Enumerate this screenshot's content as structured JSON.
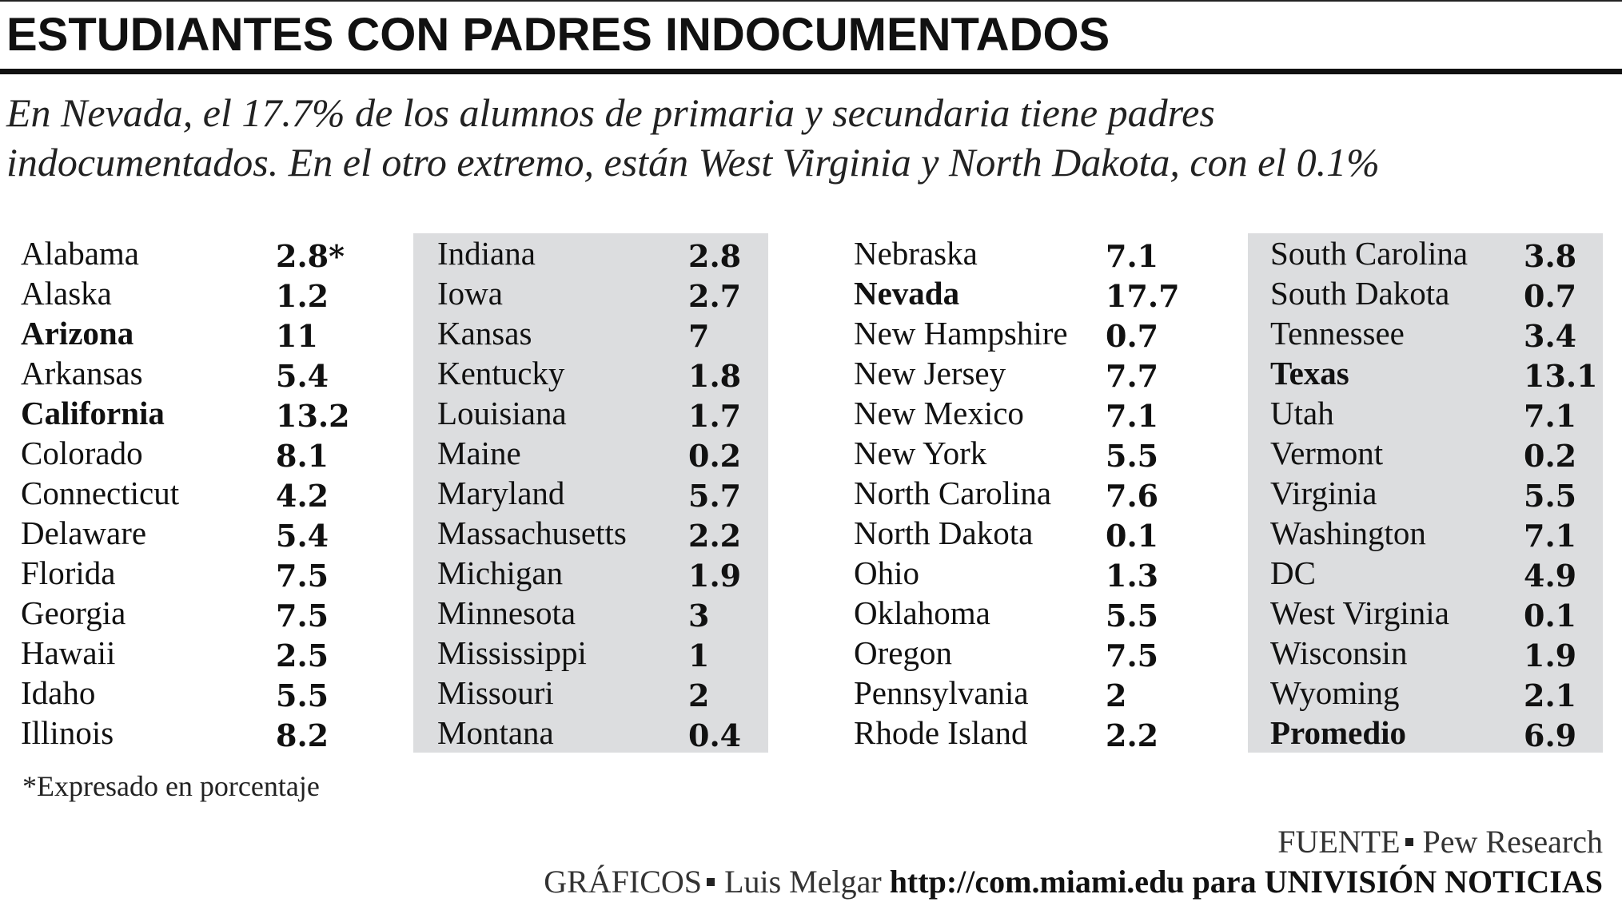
{
  "title": "ESTUDIANTES CON PADRES INDOCUMENTADOS",
  "subtitle": {
    "line1": "En Nevada, el 17.7% de los alumnos de primaria y secundaria tiene padres",
    "line2": "indocumentados. En el otro extremo, están West Virginia y North Dakota, con el 0.1%"
  },
  "columns": [
    {
      "shaded": false,
      "rows": [
        {
          "name": "Alabama",
          "value": "2.8*",
          "bold": false
        },
        {
          "name": "Alaska",
          "value": "1.2",
          "bold": false
        },
        {
          "name": "Arizona",
          "value": "11",
          "bold": true
        },
        {
          "name": "Arkansas",
          "value": "5.4",
          "bold": false
        },
        {
          "name": "California",
          "value": "13.2",
          "bold": true
        },
        {
          "name": "Colorado",
          "value": "8.1",
          "bold": false
        },
        {
          "name": "Connecticut",
          "value": "4.2",
          "bold": false
        },
        {
          "name": "Delaware",
          "value": "5.4",
          "bold": false
        },
        {
          "name": "Florida",
          "value": "7.5",
          "bold": false
        },
        {
          "name": "Georgia",
          "value": "7.5",
          "bold": false
        },
        {
          "name": "Hawaii",
          "value": "2.5",
          "bold": false
        },
        {
          "name": "Idaho",
          "value": "5.5",
          "bold": false
        },
        {
          "name": "Illinois",
          "value": "8.2",
          "bold": false
        }
      ]
    },
    {
      "shaded": true,
      "rows": [
        {
          "name": "Indiana",
          "value": "2.8",
          "bold": false
        },
        {
          "name": "Iowa",
          "value": "2.7",
          "bold": false
        },
        {
          "name": "Kansas",
          "value": "7",
          "bold": false
        },
        {
          "name": "Kentucky",
          "value": "1.8",
          "bold": false
        },
        {
          "name": "Louisiana",
          "value": "1.7",
          "bold": false
        },
        {
          "name": "Maine",
          "value": "0.2",
          "bold": false
        },
        {
          "name": "Maryland",
          "value": "5.7",
          "bold": false
        },
        {
          "name": "Massachusetts",
          "value": "2.2",
          "bold": false
        },
        {
          "name": "Michigan",
          "value": "1.9",
          "bold": false
        },
        {
          "name": "Minnesota",
          "value": "3",
          "bold": false
        },
        {
          "name": "Mississippi",
          "value": "1",
          "bold": false
        },
        {
          "name": "Missouri",
          "value": "2",
          "bold": false
        },
        {
          "name": "Montana",
          "value": "0.4",
          "bold": false
        }
      ]
    },
    {
      "shaded": false,
      "rows": [
        {
          "name": "Nebraska",
          "value": "7.1",
          "bold": false
        },
        {
          "name": "Nevada",
          "value": "17.7",
          "bold": true
        },
        {
          "name": "New Hampshire",
          "value": "0.7",
          "bold": false
        },
        {
          "name": "New Jersey",
          "value": "7.7",
          "bold": false
        },
        {
          "name": "New Mexico",
          "value": "7.1",
          "bold": false
        },
        {
          "name": "New York",
          "value": "5.5",
          "bold": false
        },
        {
          "name": "North Carolina",
          "value": "7.6",
          "bold": false
        },
        {
          "name": "North Dakota",
          "value": "0.1",
          "bold": false
        },
        {
          "name": "Ohio",
          "value": "1.3",
          "bold": false
        },
        {
          "name": "Oklahoma",
          "value": "5.5",
          "bold": false
        },
        {
          "name": "Oregon",
          "value": "7.5",
          "bold": false
        },
        {
          "name": "Pennsylvania",
          "value": "2",
          "bold": false
        },
        {
          "name": "Rhode Island",
          "value": "2.2",
          "bold": false
        }
      ]
    },
    {
      "shaded": true,
      "rows": [
        {
          "name": "South Carolina",
          "value": "3.8",
          "bold": false
        },
        {
          "name": "South Dakota",
          "value": "0.7",
          "bold": false
        },
        {
          "name": "Tennessee",
          "value": "3.4",
          "bold": false
        },
        {
          "name": "Texas",
          "value": "13.1",
          "bold": true
        },
        {
          "name": "Utah",
          "value": "7.1",
          "bold": false
        },
        {
          "name": "Vermont",
          "value": "0.2",
          "bold": false
        },
        {
          "name": "Virginia",
          "value": "5.5",
          "bold": false
        },
        {
          "name": "Washington",
          "value": "7.1",
          "bold": false
        },
        {
          "name": "DC",
          "value": "4.9",
          "bold": false
        },
        {
          "name": "West Virginia",
          "value": "0.1",
          "bold": false
        },
        {
          "name": "Wisconsin",
          "value": "1.9",
          "bold": false
        },
        {
          "name": "Wyoming",
          "value": "2.1",
          "bold": false
        },
        {
          "name": "Promedio",
          "value": "6.9",
          "bold": true
        }
      ]
    }
  ],
  "footnote": "*Expresado en porcentaje",
  "source": {
    "label": "FUENTE",
    "value": "Pew Research"
  },
  "graphics": {
    "label": "GRÁFICOS",
    "author": "Luis Melgar",
    "url": "http://com.miami.edu",
    "suffix": "para UNIVISIÓN NOTICIAS"
  },
  "colors": {
    "panel_shade": "#dcdddf",
    "text": "#111111",
    "rule": "#111111"
  }
}
